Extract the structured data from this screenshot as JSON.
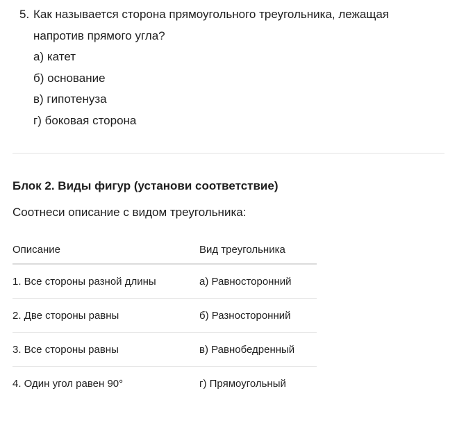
{
  "question": {
    "number": "5.",
    "text": "Как называется сторона прямоугольного треугольника, лежащая напротив прямого угла?",
    "options": [
      "а) катет",
      "б) основание",
      "в) гипотенуза",
      "г) боковая сторона"
    ]
  },
  "block": {
    "title": "Блок 2. Виды фигур (установи соответствие)",
    "instruction": "Соотнеси описание с видом треугольника:",
    "table": {
      "headers": [
        "Описание",
        "Вид треугольника"
      ],
      "rows": [
        [
          "1. Все стороны разной длины",
          "а) Равносторонний"
        ],
        [
          "2. Две стороны равны",
          "б) Разносторонний"
        ],
        [
          "3. Все стороны равны",
          "в) Равнобедренный"
        ],
        [
          "4. Один угол равен 90°",
          "г) Прямоугольный"
        ]
      ]
    }
  }
}
